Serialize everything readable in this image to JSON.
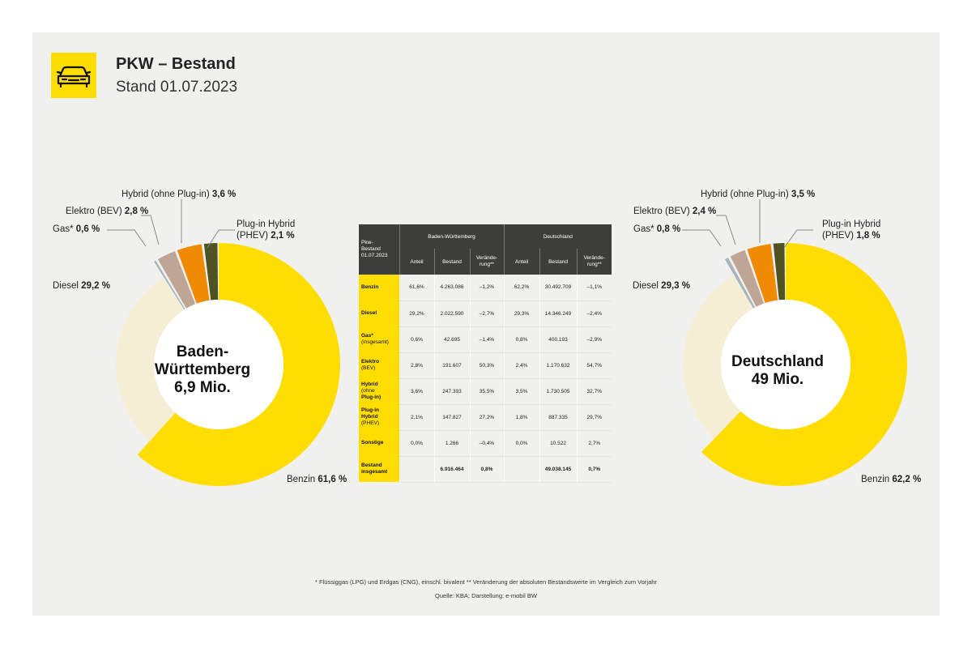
{
  "header": {
    "title": "PKW – Bestand",
    "subtitle": "Stand 01.07.2023",
    "icon": "car-icon"
  },
  "colors": {
    "benzin": "#ffdd00",
    "diesel": "#f5eed5",
    "gas": "#a9b4bb",
    "elektro": "#bfa593",
    "hybrid": "#f08a00",
    "phev": "#4d5321",
    "panel": "#f0f0ef",
    "table_header": "#3d3d3b"
  },
  "chart_data": [
    {
      "type": "pie",
      "center_label": [
        "Baden-",
        "Württemberg",
        "6,9 Mio."
      ],
      "slices": [
        {
          "name": "Benzin",
          "value": 61.6,
          "label": "Benzin",
          "value_text": "61,6 %"
        },
        {
          "name": "Diesel",
          "value": 29.2,
          "label": "Diesel",
          "value_text": "29,2 %"
        },
        {
          "name": "Gas*",
          "value": 0.6,
          "label": "Gas*",
          "value_text": "0,6 %"
        },
        {
          "name": "Elektro (BEV)",
          "value": 2.8,
          "label": "Elektro (BEV)",
          "value_text": "2,8 %"
        },
        {
          "name": "Hybrid (ohne Plug-in)",
          "value": 3.6,
          "label": "Hybrid (ohne Plug-in)",
          "value_text": "3,6 %"
        },
        {
          "name": "Plug-in Hybrid (PHEV)",
          "value": 2.1,
          "label": "Plug-in Hybrid",
          "label2": "(PHEV)",
          "value_text": "2,1 %"
        }
      ]
    },
    {
      "type": "pie",
      "center_label": [
        "Deutschland",
        "49 Mio."
      ],
      "slices": [
        {
          "name": "Benzin",
          "value": 62.2,
          "label": "Benzin",
          "value_text": "62,2 %"
        },
        {
          "name": "Diesel",
          "value": 29.3,
          "label": "Diesel",
          "value_text": "29,3 %"
        },
        {
          "name": "Gas*",
          "value": 0.8,
          "label": "Gas*",
          "value_text": "0,8 %"
        },
        {
          "name": "Elektro (BEV)",
          "value": 2.4,
          "label": "Elektro (BEV)",
          "value_text": "2,4 %"
        },
        {
          "name": "Hybrid (ohne Plug-in)",
          "value": 3.5,
          "label": "Hybrid (ohne Plug-in)",
          "value_text": "3,5 %"
        },
        {
          "name": "Plug-in Hybrid (PHEV)",
          "value": 1.8,
          "label": "Plug-in Hybrid",
          "label2": "(PHEV)",
          "value_text": "1,8 %"
        }
      ]
    },
    {
      "type": "table",
      "corner_label": [
        "Pkw-",
        "Bestand",
        "01.07.2023"
      ],
      "groups": [
        "Baden-Württemberg",
        "Deutschland"
      ],
      "columns": [
        "Anteil",
        "Bestand",
        "Verände-",
        "rung**"
      ],
      "rows": [
        {
          "label": [
            "Benzin"
          ],
          "bw": [
            "61,6%",
            "4.263.086",
            "–1,2%"
          ],
          "de": [
            "62,2%",
            "30.492.709",
            "–1,1%"
          ]
        },
        {
          "label": [
            "Diesel"
          ],
          "bw": [
            "29,2%",
            "2.022.590",
            "–2,7%"
          ],
          "de": [
            "29,3%",
            "14.346.249",
            "–2,4%"
          ]
        },
        {
          "label": [
            "Gas*",
            "(insgesamt)"
          ],
          "bw": [
            "0,6%",
            "42.695",
            "–1,4%"
          ],
          "de": [
            "0,8%",
            "400.193",
            "–2,9%"
          ]
        },
        {
          "label": [
            "Elektro",
            "(BEV)"
          ],
          "bw": [
            "2,8%",
            "191.607",
            "50,3%"
          ],
          "de": [
            "2,4%",
            "1.170.632",
            "54,7%"
          ]
        },
        {
          "label": [
            "Hybrid",
            "(ohne",
            "Plug-in)"
          ],
          "bw": [
            "3,6%",
            "247.393",
            "35,5%"
          ],
          "de": [
            "3,5%",
            "1.730.505",
            "32,7%"
          ]
        },
        {
          "label": [
            "Plug-in",
            "Hybrid",
            "(PHEV)"
          ],
          "bw": [
            "2,1%",
            "147.827",
            "27,2%"
          ],
          "de": [
            "1,8%",
            "887.335",
            "29,7%"
          ]
        },
        {
          "label": [
            "Sonstige"
          ],
          "bw": [
            "0,0%",
            "1.266",
            "–0,4%"
          ],
          "de": [
            "0,0%",
            "10.522",
            "2,7%"
          ]
        },
        {
          "label": [
            "Bestand",
            "insgesamt"
          ],
          "bw": [
            "",
            "6.916.464",
            "0,8%"
          ],
          "de": [
            "",
            "49.038.145",
            "0,7%"
          ]
        }
      ]
    }
  ],
  "footnote": "* Flüssiggas (LPG) und Erdgas (CNG), einschl. bivalent ** Veränderung der absoluten Bestandswerte im Vergleich zum Vorjahr",
  "source": "Quelle: KBA; Darstellung: e-mobil BW"
}
